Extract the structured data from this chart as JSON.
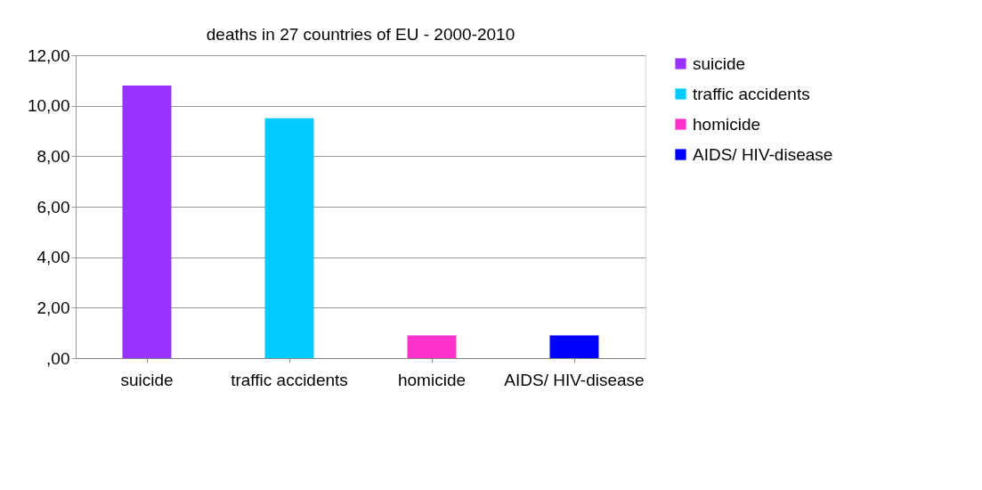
{
  "chart_data": {
    "type": "bar",
    "title": "deaths  in 27 countries of EU - 2000-2010",
    "categories": [
      "suicide",
      "traffic accidents",
      "homicide",
      "AIDS/ HIV-disease"
    ],
    "series": [
      {
        "name": "suicide",
        "color": "#9933ff",
        "values": [
          10.8,
          null,
          null,
          null
        ]
      },
      {
        "name": "traffic accidents",
        "color": "#00ccff",
        "values": [
          null,
          9.5,
          null,
          null
        ]
      },
      {
        "name": "homicide",
        "color": "#ff33cc",
        "values": [
          null,
          null,
          0.9,
          null
        ]
      },
      {
        "name": "AIDS/ HIV-disease",
        "color": "#0000ff",
        "values": [
          null,
          null,
          null,
          0.9
        ]
      }
    ],
    "ylim": [
      0,
      12
    ],
    "yticks": [
      {
        "value": 0,
        "label": ",00"
      },
      {
        "value": 2,
        "label": "2,00"
      },
      {
        "value": 4,
        "label": "4,00"
      },
      {
        "value": 6,
        "label": "6,00"
      },
      {
        "value": 8,
        "label": "8,00"
      },
      {
        "value": 10,
        "label": "10,00"
      },
      {
        "value": 12,
        "label": "12,00"
      }
    ],
    "grid": "y",
    "legend": "right"
  }
}
